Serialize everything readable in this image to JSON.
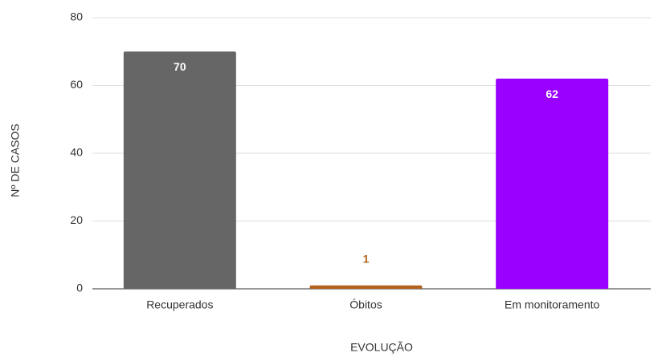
{
  "chart_data": {
    "type": "bar",
    "categories": [
      "Recuperados",
      "Óbitos",
      "Em monitoramento"
    ],
    "values": [
      70,
      1,
      62
    ],
    "colors": [
      "#666666",
      "#b4631f",
      "#9900ff"
    ],
    "xlabel": "EVOLUÇÃO",
    "ylabel": "Nº DE CASOS",
    "ylim": [
      0,
      80
    ],
    "yticks": [
      0,
      20,
      40,
      60,
      80
    ],
    "grid": true
  }
}
